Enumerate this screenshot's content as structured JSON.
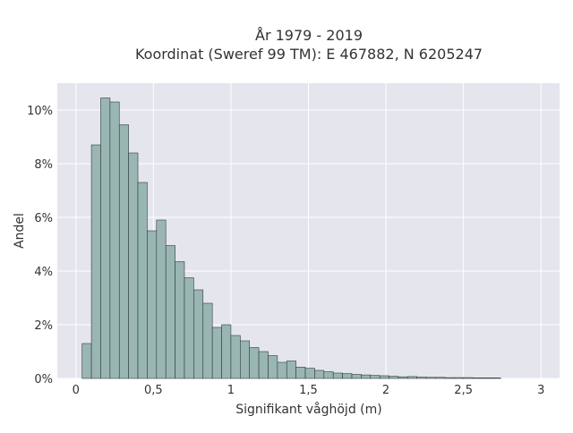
{
  "chart_data": {
    "type": "bar",
    "title_line1": "År 1979 - 2019",
    "title_line2": "Koordinat (Sweref 99 TM): E 467882, N 6205247",
    "xlabel": "Signifikant våghöjd (m)",
    "ylabel": "Andel",
    "xlim": [
      -0.12,
      3.12
    ],
    "ylim": [
      0,
      11
    ],
    "x_ticks": [
      0,
      0.5,
      1,
      1.5,
      2,
      2.5,
      3
    ],
    "x_tick_labels": [
      "0",
      "0,5",
      "1",
      "1,5",
      "2",
      "2,5",
      "3"
    ],
    "y_ticks": [
      0,
      2,
      4,
      6,
      8,
      10
    ],
    "y_tick_labels": [
      "0%",
      "2%",
      "4%",
      "6%",
      "8%",
      "10%"
    ],
    "bin_width": 0.06,
    "bin_starts": [
      0.04,
      0.1,
      0.16,
      0.22,
      0.28,
      0.34,
      0.4,
      0.46,
      0.52,
      0.58,
      0.64,
      0.7,
      0.76,
      0.82,
      0.88,
      0.94,
      1.0,
      1.06,
      1.12,
      1.18,
      1.24,
      1.3,
      1.36,
      1.42,
      1.48,
      1.54,
      1.6,
      1.66,
      1.72,
      1.78,
      1.84,
      1.9,
      1.96,
      2.02,
      2.08,
      2.14,
      2.2,
      2.26,
      2.32,
      2.38,
      2.44,
      2.5,
      2.56,
      2.62,
      2.68
    ],
    "values": [
      1.3,
      8.7,
      10.45,
      10.3,
      9.45,
      8.4,
      7.3,
      5.5,
      5.9,
      4.95,
      4.35,
      3.75,
      3.3,
      2.8,
      1.9,
      2.0,
      1.6,
      1.4,
      1.15,
      1.0,
      0.85,
      0.6,
      0.65,
      0.42,
      0.38,
      0.3,
      0.25,
      0.2,
      0.18,
      0.15,
      0.13,
      0.11,
      0.1,
      0.08,
      0.06,
      0.07,
      0.05,
      0.04,
      0.04,
      0.03,
      0.03,
      0.03,
      0.02,
      0.02,
      0.02
    ],
    "grid": true,
    "colors": {
      "plot_background": "#e5e5ee",
      "grid": "#ffffff",
      "bar_fill": "#9ab6b3",
      "bar_edge": "#2e3b3a"
    }
  }
}
